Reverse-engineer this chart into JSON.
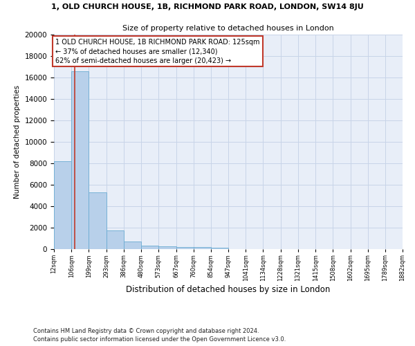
{
  "title1": "1, OLD CHURCH HOUSE, 1B, RICHMOND PARK ROAD, LONDON, SW14 8JU",
  "title2": "Size of property relative to detached houses in London",
  "xlabel": "Distribution of detached houses by size in London",
  "ylabel": "Number of detached properties",
  "footer1": "Contains HM Land Registry data © Crown copyright and database right 2024.",
  "footer2": "Contains public sector information licensed under the Open Government Licence v3.0.",
  "annotation_title": "1 OLD CHURCH HOUSE, 1B RICHMOND PARK ROAD: 125sqm",
  "annotation_line2": "← 37% of detached houses are smaller (12,340)",
  "annotation_line3": "62% of semi-detached houses are larger (20,423) →",
  "subject_size": 125,
  "bar_left_edges": [
    12,
    106,
    199,
    293,
    386,
    480,
    573,
    667,
    760,
    854,
    947,
    1041,
    1134,
    1228,
    1321,
    1415,
    1508,
    1602,
    1695,
    1789
  ],
  "bar_widths": [
    94,
    93,
    94,
    93,
    94,
    93,
    94,
    93,
    94,
    93,
    94,
    93,
    94,
    93,
    93,
    93,
    94,
    93,
    94,
    93
  ],
  "bar_heights": [
    8200,
    16600,
    5300,
    1750,
    700,
    350,
    265,
    210,
    175,
    150,
    0,
    0,
    0,
    0,
    0,
    0,
    0,
    0,
    0,
    0
  ],
  "tick_labels": [
    "12sqm",
    "106sqm",
    "199sqm",
    "293sqm",
    "386sqm",
    "480sqm",
    "573sqm",
    "667sqm",
    "760sqm",
    "854sqm",
    "947sqm",
    "1041sqm",
    "1134sqm",
    "1228sqm",
    "1321sqm",
    "1415sqm",
    "1508sqm",
    "1602sqm",
    "1695sqm",
    "1789sqm",
    "1882sqm"
  ],
  "bar_color": "#b8d0ea",
  "bar_edge_color": "#6aabd2",
  "subject_line_color": "#c0392b",
  "grid_color": "#c8d4e8",
  "bg_color": "#e8eef8",
  "ylim": [
    0,
    20000
  ],
  "yticks": [
    0,
    2000,
    4000,
    6000,
    8000,
    10000,
    12000,
    14000,
    16000,
    18000,
    20000
  ]
}
